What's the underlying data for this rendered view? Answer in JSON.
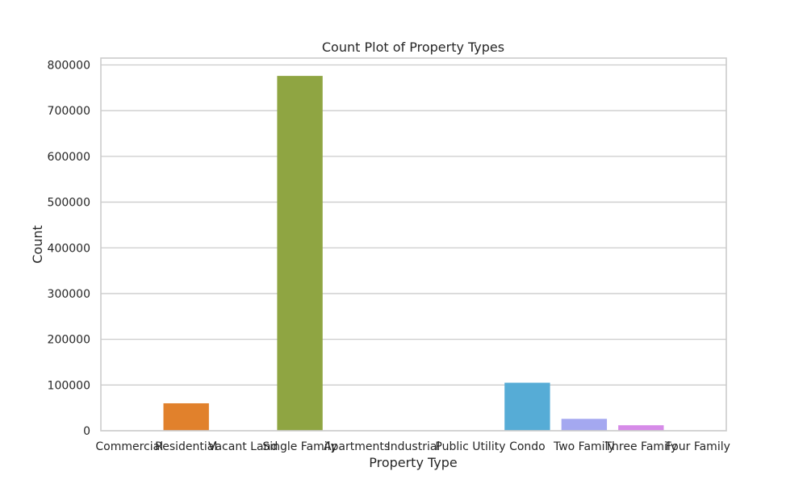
{
  "chart_data": {
    "type": "bar",
    "title": "Count Plot of Property Types",
    "xlabel": "Property Type",
    "ylabel": "Count",
    "categories": [
      "Commercial",
      "Residential",
      "Vacant Land",
      "Single Family",
      "Apartments",
      "Industrial",
      "Public Utility",
      "Condo",
      "Two Family",
      "Three Family",
      "Four Family"
    ],
    "values": [
      300,
      60000,
      200,
      776000,
      200,
      100,
      100,
      105000,
      26000,
      12000,
      500
    ],
    "colors": [
      "#3274a1",
      "#e1812c",
      "#3a923a",
      "#8fa542",
      "#c03d3e",
      "#9372b2",
      "#845b53",
      "#56acd6",
      "#a4a8f0",
      "#d68be8",
      "#c6a3a8"
    ],
    "yticks": [
      0,
      100000,
      200000,
      300000,
      400000,
      500000,
      600000,
      700000,
      800000
    ],
    "ylim": [
      0,
      815000
    ],
    "grid": true,
    "legend": "none"
  }
}
